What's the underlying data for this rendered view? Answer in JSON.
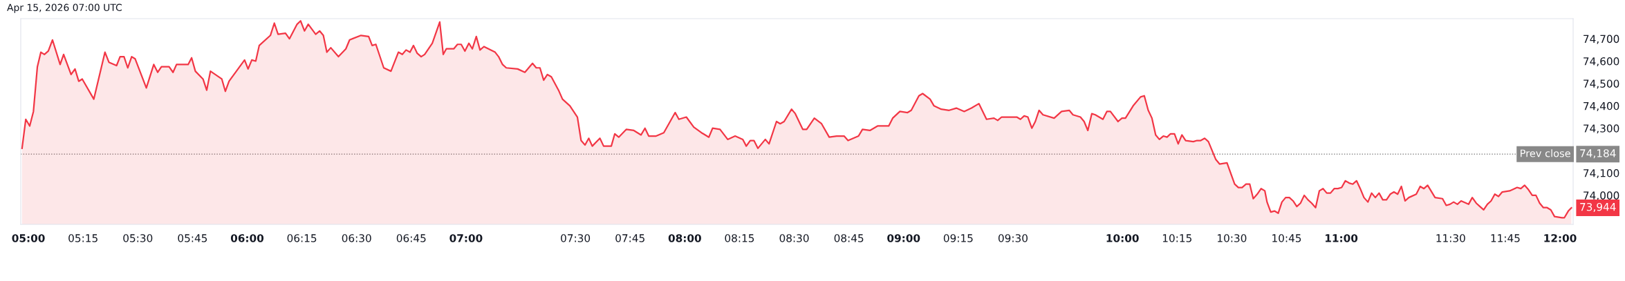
{
  "chart_data": {
    "type": "area",
    "title": "Apr 15, 2026 07:00 UTC",
    "xlim": [
      4.965,
      12.06
    ],
    "ylim": [
      73870,
      74790
    ],
    "xticks": [
      {
        "value": 5,
        "label": "05:00"
      },
      {
        "value": 5.25,
        "label": "05:15"
      },
      {
        "value": 5.5,
        "label": "05:30"
      },
      {
        "value": 5.75,
        "label": "05:45"
      },
      {
        "value": 6,
        "label": "06:00"
      },
      {
        "value": 6.25,
        "label": "06:15"
      },
      {
        "value": 6.5,
        "label": "06:30"
      },
      {
        "value": 6.75,
        "label": "06:45"
      },
      {
        "value": 7,
        "label": "07:00"
      },
      {
        "value": 7.5,
        "label": "07:30"
      },
      {
        "value": 7.75,
        "label": "07:45"
      },
      {
        "value": 8,
        "label": "08:00"
      },
      {
        "value": 8.25,
        "label": "08:15"
      },
      {
        "value": 8.5,
        "label": "08:30"
      },
      {
        "value": 8.75,
        "label": "08:45"
      },
      {
        "value": 9,
        "label": "09:00"
      },
      {
        "value": 9.25,
        "label": "09:15"
      },
      {
        "value": 9.5,
        "label": "09:30"
      },
      {
        "value": 10,
        "label": "10:00"
      },
      {
        "value": 10.25,
        "label": "10:15"
      },
      {
        "value": 10.5,
        "label": "10:30"
      },
      {
        "value": 10.75,
        "label": "10:45"
      },
      {
        "value": 11,
        "label": "11:00"
      },
      {
        "value": 11.5,
        "label": "11:30"
      },
      {
        "value": 11.75,
        "label": "11:45"
      },
      {
        "value": 12,
        "label": "12:00"
      }
    ],
    "yticks": [
      {
        "value": 74000,
        "label": "74,000"
      },
      {
        "value": 74100,
        "label": "74,100"
      },
      {
        "value": 74300,
        "label": "74,300"
      },
      {
        "value": 74400,
        "label": "74,400"
      },
      {
        "value": 74500,
        "label": "74,500"
      },
      {
        "value": 74600,
        "label": "74,600"
      },
      {
        "value": 74700,
        "label": "74,700"
      }
    ],
    "ref_lines": [
      {
        "axis": "y",
        "value": 74184,
        "label": "Prev close",
        "color": "#888888",
        "line_style": "dotted"
      }
    ],
    "annotations": [
      "74,184",
      "73,944"
    ],
    "series": [
      {
        "color": "#f23645",
        "x": [
          4.971,
          4.988,
          5.006,
          5.023,
          5.041,
          5.057,
          5.073,
          5.091,
          5.11,
          5.145,
          5.161,
          5.195,
          5.213,
          5.23,
          5.246,
          5.299,
          5.35,
          5.368,
          5.403,
          5.419,
          5.437,
          5.454,
          5.472,
          5.488,
          5.539,
          5.573,
          5.591,
          5.608,
          5.643,
          5.661,
          5.677,
          5.73,
          5.746,
          5.763,
          5.798,
          5.815,
          5.832,
          5.884,
          5.9,
          5.917,
          5.988,
          6.004,
          6.021,
          6.039,
          6.055,
          6.106,
          6.124,
          6.141,
          6.175,
          6.193,
          6.228,
          6.244,
          6.262,
          6.279,
          6.313,
          6.331,
          6.348,
          6.364,
          6.382,
          6.417,
          6.451,
          6.468,
          6.52,
          6.555,
          6.571,
          6.588,
          6.624,
          6.657,
          6.691,
          6.709,
          6.726,
          6.744,
          6.76,
          6.777,
          6.795,
          6.811,
          6.846,
          6.88,
          6.896,
          6.91,
          6.944,
          6.961,
          6.978,
          6.995,
          7.013,
          7.029,
          7.047,
          7.064,
          7.082,
          7.133,
          7.149,
          7.167,
          7.184,
          7.236,
          7.269,
          7.304,
          7.321,
          7.338,
          7.355,
          7.372,
          7.39,
          7.423,
          7.441,
          7.475,
          7.509,
          7.526,
          7.544,
          7.561,
          7.577,
          7.612,
          7.629,
          7.664,
          7.68,
          7.698,
          7.733,
          7.767,
          7.8,
          7.818,
          7.835,
          7.869,
          7.904,
          7.956,
          7.973,
          8.007,
          8.041,
          8.076,
          8.11,
          8.127,
          8.161,
          8.196,
          8.23,
          8.265,
          8.281,
          8.299,
          8.316,
          8.334,
          8.368,
          8.385,
          8.419,
          8.436,
          8.454,
          8.488,
          8.505,
          8.539,
          8.557,
          8.592,
          8.625,
          8.66,
          8.694,
          8.728,
          8.746,
          8.794,
          8.812,
          8.846,
          8.881,
          8.932,
          8.95,
          8.983,
          9.018,
          9.035,
          9.07,
          9.087,
          9.121,
          9.139,
          9.172,
          9.208,
          9.241,
          9.277,
          9.31,
          9.344,
          9.379,
          9.413,
          9.43,
          9.448,
          9.517,
          9.534,
          9.551,
          9.568,
          9.586,
          9.602,
          9.619,
          9.637,
          9.688,
          9.722,
          9.757,
          9.774,
          9.808,
          9.825,
          9.842,
          9.86,
          9.876,
          9.911,
          9.929,
          9.945,
          9.98,
          9.998,
          10.014,
          10.049,
          10.083,
          10.1,
          10.118,
          10.135,
          10.152,
          10.169,
          10.187,
          10.204,
          10.22,
          10.238,
          10.255,
          10.272,
          10.289,
          10.324,
          10.341,
          10.358,
          10.376,
          10.393,
          10.427,
          10.444,
          10.478,
          10.513,
          10.53,
          10.547,
          10.565,
          10.582,
          10.598,
          10.616,
          10.634,
          10.651,
          10.661,
          10.678,
          10.695,
          10.712,
          10.729,
          10.746,
          10.763,
          10.78,
          10.797,
          10.814,
          10.831,
          10.848,
          10.865,
          10.883,
          10.9,
          10.917,
          10.934,
          10.951,
          10.968,
          10.985,
          11.002,
          11.019,
          11.036,
          11.053,
          11.07,
          11.087,
          11.104,
          11.122,
          11.139,
          11.156,
          11.173,
          11.19,
          11.207,
          11.224,
          11.241,
          11.258,
          11.275,
          11.292,
          11.309,
          11.343,
          11.361,
          11.378,
          11.395,
          11.429,
          11.463,
          11.48,
          11.497,
          11.514,
          11.531,
          11.548,
          11.582,
          11.599,
          11.617,
          11.634,
          11.651,
          11.668,
          11.685,
          11.702,
          11.719,
          11.736,
          11.77,
          11.804,
          11.821,
          11.838,
          11.856,
          11.873,
          11.89,
          11.907,
          11.924,
          11.941,
          11.958,
          11.975,
          12.009,
          12.02,
          12.038,
          12.052
        ],
        "values": [
          74210,
          74340,
          74310,
          74375,
          74575,
          74640,
          74630,
          74645,
          74695,
          74585,
          74630,
          74540,
          74565,
          74510,
          74520,
          74430,
          74640,
          74595,
          74580,
          74620,
          74620,
          74570,
          74620,
          74610,
          74480,
          74585,
          74550,
          74575,
          74575,
          74550,
          74585,
          74585,
          74615,
          74555,
          74520,
          74470,
          74555,
          74520,
          74465,
          74510,
          74605,
          74565,
          74605,
          74600,
          74670,
          74715,
          74770,
          74720,
          74725,
          74700,
          74765,
          74780,
          74735,
          74765,
          74720,
          74735,
          74715,
          74640,
          74660,
          74620,
          74655,
          74695,
          74715,
          74710,
          74670,
          74675,
          74570,
          74555,
          74640,
          74630,
          74650,
          74640,
          74670,
          74635,
          74620,
          74630,
          74680,
          74775,
          74630,
          74655,
          74655,
          74675,
          74675,
          74645,
          74680,
          74655,
          74710,
          74650,
          74665,
          74640,
          74620,
          74585,
          74570,
          74565,
          74550,
          74590,
          74570,
          74570,
          74515,
          74540,
          74530,
          74470,
          74430,
          74400,
          74350,
          74245,
          74225,
          74255,
          74220,
          74255,
          74220,
          74220,
          74275,
          74260,
          74295,
          74290,
          74270,
          74300,
          74265,
          74265,
          74280,
          74370,
          74340,
          74350,
          74305,
          74280,
          74260,
          74300,
          74295,
          74250,
          74265,
          74250,
          74220,
          74245,
          74245,
          74210,
          74250,
          74230,
          74330,
          74320,
          74330,
          74385,
          74365,
          74295,
          74295,
          74345,
          74320,
          74260,
          74265,
          74265,
          74245,
          74265,
          74295,
          74290,
          74310,
          74310,
          74345,
          74375,
          74370,
          74380,
          74445,
          74455,
          74430,
          74400,
          74385,
          74380,
          74390,
          74375,
          74390,
          74410,
          74340,
          74345,
          74335,
          74350,
          74350,
          74340,
          74355,
          74350,
          74300,
          74330,
          74380,
          74360,
          74345,
          74375,
          74380,
          74360,
          74350,
          74330,
          74290,
          74365,
          74360,
          74340,
          74375,
          74375,
          74330,
          74345,
          74345,
          74400,
          74440,
          74445,
          74380,
          74345,
          74270,
          74250,
          74265,
          74260,
          74275,
          74275,
          74230,
          74270,
          74245,
          74240,
          74245,
          74245,
          74255,
          74240,
          74160,
          74140,
          74145,
          74050,
          74035,
          74035,
          74050,
          74050,
          73985,
          74005,
          74030,
          74020,
          73970,
          73925,
          73930,
          73920,
          73970,
          73990,
          73990,
          73975,
          73950,
          73965,
          74000,
          73980,
          73965,
          73945,
          74020,
          74030,
          74010,
          74010,
          74030,
          74030,
          74035,
          74065,
          74055,
          74050,
          74065,
          74030,
          73990,
          73970,
          74010,
          73990,
          74010,
          73980,
          73980,
          74005,
          74015,
          74005,
          74040,
          73975,
          73990,
          74005,
          74040,
          74030,
          74045,
          73990,
          73985,
          73955,
          73960,
          73970,
          73960,
          73975,
          73960,
          73990,
          73965,
          73950,
          73935,
          73960,
          73975,
          74005,
          73995,
          74015,
          74020,
          74035,
          74030,
          74045,
          74025,
          74000,
          74000,
          73965,
          73945,
          73945,
          73935,
          73905,
          73900,
          73900,
          73930,
          73944
        ]
      }
    ]
  }
}
